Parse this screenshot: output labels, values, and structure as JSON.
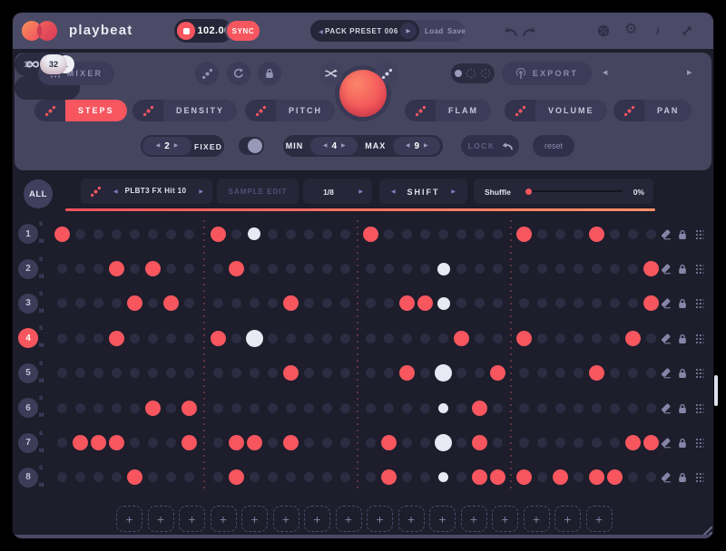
{
  "app": {
    "title": "playbeat"
  },
  "topbar": {
    "tempo": "102.00",
    "sync_label": "SYNC",
    "preset_name": "PACK PRESET 006",
    "load_label": "Load",
    "save_label": "Save"
  },
  "controls": {
    "mixer_label": "MIXER",
    "grid_options": [
      "16",
      "32"
    ],
    "grid_selected": "32",
    "export_label": "EXPORT",
    "loop_value": "1",
    "tabs_left": [
      "STEPS",
      "DENSITY",
      "PITCH"
    ],
    "tabs_right": [
      "FLAM",
      "VOLUME",
      "PAN"
    ],
    "active_tab": "STEPS",
    "length_value": "2",
    "length_mode": "FIXED",
    "min_label": "MIN",
    "min_value": "4",
    "max_label": "MAX",
    "max_value": "9",
    "lock_label": "LOCK",
    "reset_label": "reset"
  },
  "track_header": {
    "all_label": "ALL",
    "sample_name": "PLBT3 FX Hit 10",
    "sample_edit_label": "SAMPLE EDIT",
    "rate": "1/8",
    "shift_label": "SHIFT",
    "shuffle_label": "Shuffle",
    "shuffle_value": "0%"
  },
  "sequencer": {
    "solo_label": "S",
    "mute_label": "M",
    "steps_per_track": 32,
    "tracks": [
      {
        "num": "1",
        "selected": false,
        "active_steps": [
          1,
          9,
          17,
          25,
          29
        ],
        "playhead_step": 11,
        "playhead_size": "md"
      },
      {
        "num": "2",
        "selected": false,
        "active_steps": [
          4,
          6,
          10,
          32
        ],
        "playhead_step": 21,
        "playhead_size": "md"
      },
      {
        "num": "3",
        "selected": false,
        "active_steps": [
          5,
          7,
          13,
          19,
          20,
          32
        ],
        "playhead_step": 21,
        "playhead_size": "md"
      },
      {
        "num": "4",
        "selected": true,
        "active_steps": [
          4,
          9,
          22,
          25,
          31
        ],
        "playhead_step": 11,
        "playhead_size": "lg"
      },
      {
        "num": "5",
        "selected": false,
        "active_steps": [
          13,
          19,
          24,
          29
        ],
        "playhead_step": 21,
        "playhead_size": "lg"
      },
      {
        "num": "6",
        "selected": false,
        "active_steps": [
          6,
          8,
          23
        ],
        "playhead_step": 21,
        "playhead_size": "sm"
      },
      {
        "num": "7",
        "selected": false,
        "active_steps": [
          2,
          3,
          4,
          8,
          10,
          11,
          13,
          18,
          23,
          31,
          32
        ],
        "playhead_step": 21,
        "playhead_size": "lg"
      },
      {
        "num": "8",
        "selected": false,
        "active_steps": [
          5,
          10,
          18,
          23,
          24,
          25,
          27,
          29,
          30
        ],
        "playhead_step": 21,
        "playhead_size": "sm"
      }
    ]
  },
  "pattern_slots": {
    "count": 16,
    "plus_glyph": "+"
  },
  "glyphs": {
    "prev": "◀",
    "next": "▶"
  },
  "icons": {
    "gear": "⚙"
  },
  "colors": {
    "accent": "#f7565f",
    "playhead": "#e7eaf3",
    "inactive_step": "#2c2c42",
    "panel": "#45455f",
    "topbar": "#4b4b67",
    "background": "#1d1d2b"
  }
}
